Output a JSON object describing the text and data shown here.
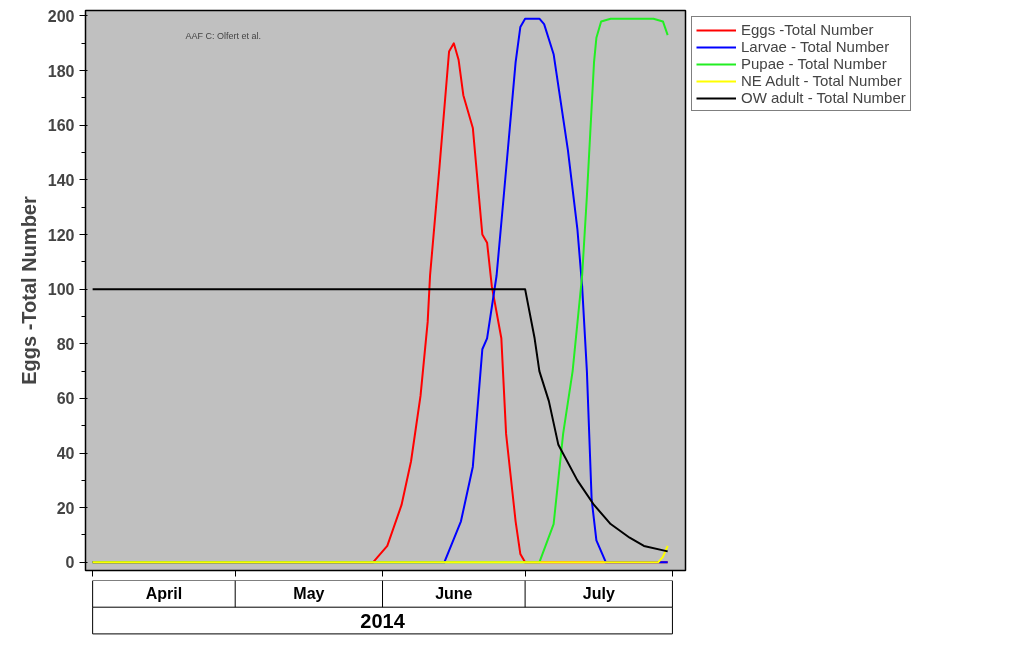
{
  "chart_data": {
    "type": "line",
    "ylabel": "Eggs -Total Number",
    "xlabel": "2014",
    "annotations": [
      "AAF C: Olfert et al."
    ],
    "xlim": [
      "2014-03-30T12:00",
      "2014-08-03T18:00"
    ],
    "xticks": [
      {
        "value": "2014-04-01",
        "label": null
      },
      {
        "value": "2014-04-16",
        "label": "April"
      },
      {
        "value": "2014-05-01",
        "label": null
      },
      {
        "value": "2014-05-16T12:00",
        "label": "May"
      },
      {
        "value": "2014-06-01",
        "label": null
      },
      {
        "value": "2014-06-16",
        "label": "June"
      },
      {
        "value": "2014-07-01",
        "label": null
      },
      {
        "value": "2014-07-16T12:00",
        "label": "July"
      },
      {
        "value": "2014-08-01",
        "label": null
      }
    ],
    "ylim": [
      -3,
      202
    ],
    "yticks": [
      0,
      20,
      40,
      60,
      80,
      100,
      120,
      140,
      160,
      180,
      200
    ],
    "grid": false,
    "legend": "top right",
    "marker": "none",
    "line_style": "solid",
    "series": [
      {
        "name": "Eggs -Total Number",
        "color": "#ff0000",
        "x": [
          "2014-04-01",
          "2014-05-30",
          "2014-06-02",
          "2014-06-05",
          "2014-06-07",
          "2014-06-09",
          "2014-06-10T12:00",
          "2014-06-11",
          "2014-06-13",
          "2014-06-15",
          "2014-06-16",
          "2014-06-17",
          "2014-06-18",
          "2014-06-20",
          "2014-06-22",
          "2014-06-23",
          "2014-06-24",
          "2014-06-26",
          "2014-06-27",
          "2014-06-29",
          "2014-06-30",
          "2014-07-01",
          "2014-07-31"
        ],
        "values": [
          0,
          0,
          6,
          21,
          37,
          61,
          88,
          105,
          145,
          187,
          190,
          184,
          171,
          159,
          120,
          117,
          101,
          82,
          47,
          15,
          3,
          0,
          0
        ]
      },
      {
        "name": "Larvae - Total Number",
        "color": "#0000ff",
        "x": [
          "2014-04-01",
          "2014-06-14",
          "2014-06-17T12:00",
          "2014-06-20",
          "2014-06-22",
          "2014-06-23",
          "2014-06-25",
          "2014-06-26T12:00",
          "2014-06-29",
          "2014-06-30",
          "2014-07-01",
          "2014-07-04",
          "2014-07-05",
          "2014-07-07",
          "2014-07-10",
          "2014-07-12",
          "2014-07-13",
          "2014-07-14",
          "2014-07-15",
          "2014-07-16",
          "2014-07-18",
          "2014-07-31"
        ],
        "values": [
          0,
          0,
          15,
          35,
          78,
          82,
          105,
          134,
          183,
          196,
          199,
          199,
          197,
          186,
          151,
          122,
          101,
          70,
          23,
          8,
          0,
          0
        ]
      },
      {
        "name": "Pupae - Total Number",
        "color": "#22ee22",
        "x": [
          "2014-04-01",
          "2014-07-04",
          "2014-07-07",
          "2014-07-09",
          "2014-07-11",
          "2014-07-13",
          "2014-07-14",
          "2014-07-15T12:00",
          "2014-07-16",
          "2014-07-17",
          "2014-07-19",
          "2014-07-28",
          "2014-07-30",
          "2014-07-31"
        ],
        "values": [
          0,
          0,
          14,
          47,
          70,
          105,
          134,
          183,
          192,
          198,
          199,
          199,
          198,
          193
        ]
      },
      {
        "name": "NE Adult - Total Number",
        "color": "#ffff00",
        "x": [
          "2014-04-01",
          "2014-07-29",
          "2014-07-30",
          "2014-07-31"
        ],
        "values": [
          0,
          0,
          2,
          6
        ]
      },
      {
        "name": "OW adult - Total Number",
        "color": "#000000",
        "x": [
          "2014-04-01",
          "2014-07-01",
          "2014-07-03",
          "2014-07-04",
          "2014-07-06",
          "2014-07-08",
          "2014-07-12",
          "2014-07-15T12:00",
          "2014-07-19",
          "2014-07-23",
          "2014-07-26",
          "2014-07-31"
        ],
        "values": [
          100,
          100,
          82,
          70,
          59,
          43,
          30,
          21,
          14,
          9,
          6,
          4
        ]
      }
    ]
  }
}
